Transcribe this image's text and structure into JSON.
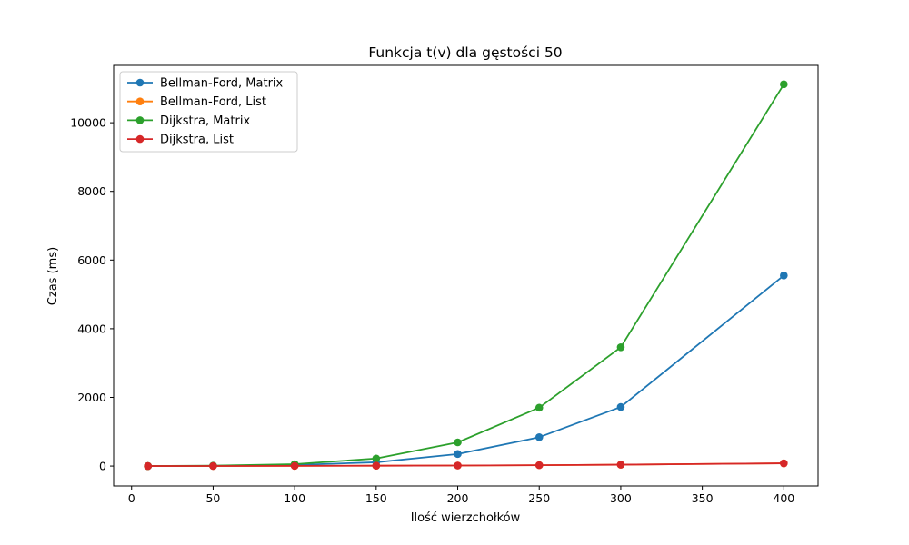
{
  "chart_data": {
    "type": "line",
    "title": "Funkcja t(v) dla gęstości 50",
    "xlabel": "Ilość wierzchołków",
    "ylabel": "Czas (ms)",
    "x": [
      10,
      50,
      100,
      150,
      200,
      250,
      300,
      400
    ],
    "xlim": [
      -11,
      421
    ],
    "ylim": [
      -580,
      11670
    ],
    "xticks": [
      0,
      50,
      100,
      150,
      200,
      250,
      300,
      350,
      400
    ],
    "yticks": [
      0,
      2000,
      4000,
      6000,
      8000,
      10000
    ],
    "grid": false,
    "legend_position": "top-left",
    "series": [
      {
        "name": "Bellman-Ford, Matrix",
        "color": "#1f77b4",
        "values": [
          0,
          5,
          30,
          110,
          350,
          840,
          1720,
          5550
        ]
      },
      {
        "name": "Bellman-Ford, List",
        "color": "#ff7f0e",
        "values": [
          0,
          2,
          5,
          10,
          15,
          25,
          40,
          80
        ]
      },
      {
        "name": "Dijkstra, Matrix",
        "color": "#2ca02c",
        "values": [
          0,
          10,
          55,
          220,
          690,
          1700,
          3460,
          11120
        ]
      },
      {
        "name": "Dijkstra, List",
        "color": "#d62728",
        "values": [
          0,
          2,
          5,
          10,
          15,
          25,
          40,
          80
        ]
      }
    ]
  }
}
